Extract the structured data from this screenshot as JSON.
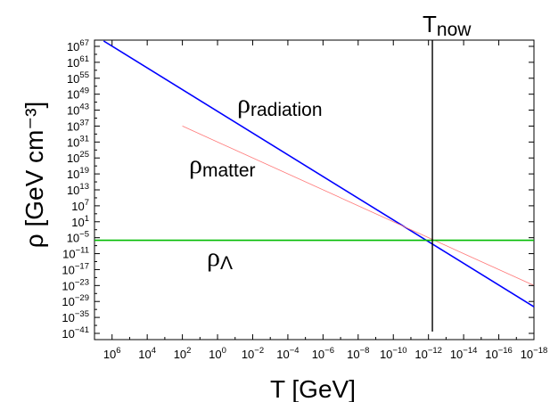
{
  "chart_data": {
    "type": "line",
    "xlabel": "T [GeV]",
    "ylabel": "ρ [GeV cm⁻³]",
    "xscale": "log",
    "xaxis_reversed": true,
    "yscale": "log",
    "xlim": [
      10000000.0,
      1e-18
    ],
    "ylim": [
      1e-41,
      1e+70
    ],
    "xticks": [
      {
        "exp": "6"
      },
      {
        "exp": "4"
      },
      {
        "exp": "2"
      },
      {
        "exp": "0"
      },
      {
        "exp": "-2"
      },
      {
        "exp": "-4"
      },
      {
        "exp": "-6"
      },
      {
        "exp": "-8"
      },
      {
        "exp": "-10"
      },
      {
        "exp": "-12"
      },
      {
        "exp": "-14"
      },
      {
        "exp": "-16"
      },
      {
        "exp": "-18"
      }
    ],
    "yticks": [
      {
        "exp": "67"
      },
      {
        "exp": "61"
      },
      {
        "exp": "55"
      },
      {
        "exp": "49"
      },
      {
        "exp": "43"
      },
      {
        "exp": "37"
      },
      {
        "exp": "31"
      },
      {
        "exp": "25"
      },
      {
        "exp": "19"
      },
      {
        "exp": "13"
      },
      {
        "exp": "7"
      },
      {
        "exp": "1"
      },
      {
        "exp": "-5"
      },
      {
        "exp": "-11"
      },
      {
        "exp": "-17"
      },
      {
        "exp": "-23"
      },
      {
        "exp": "-29"
      },
      {
        "exp": "-35"
      },
      {
        "exp": "-41"
      }
    ],
    "series": [
      {
        "key": "radiation",
        "color": "#0000ff",
        "x": [
          3000000.0,
          1e-18
        ],
        "y": [
          1e+69,
          1e-31
        ]
      },
      {
        "key": "matter",
        "color": "#ff7777",
        "x": [
          100.0,
          1e-18
        ],
        "y": [
          1e+37,
          1e-23
        ]
      },
      {
        "key": "lambda",
        "color": "#00bb00",
        "x": [
          10000000.0,
          1e-18
        ],
        "y": [
          1e-06,
          1e-06
        ]
      }
    ],
    "annotations": {
      "radiation": {
        "base": "ρ",
        "sub": "radiation"
      },
      "matter": {
        "base": "ρ",
        "sub": "matter"
      },
      "lambda": {
        "base": "ρ",
        "sub": "Λ"
      },
      "tnow": {
        "base": "T",
        "sub": "now",
        "x": 6e-13
      }
    }
  }
}
